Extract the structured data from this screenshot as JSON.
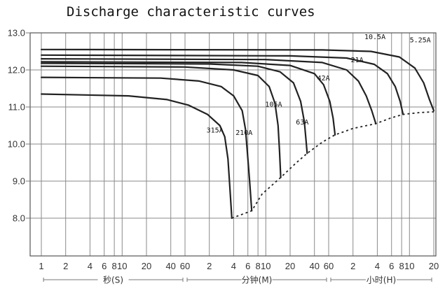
{
  "chart_data": {
    "type": "line",
    "title": "Discharge characteristic curves",
    "xlabel": "",
    "ylabel": "",
    "ylim": [
      7.0,
      13.0
    ],
    "yticks": [
      "13.0",
      "12.0",
      "11.0",
      "10.0",
      "9.0",
      "8.0"
    ],
    "x_tick_labels": [
      "1",
      "2",
      "4",
      "6",
      "8",
      "10",
      "20",
      "40",
      "60",
      "2",
      "4",
      "6",
      "8",
      "10",
      "20",
      "40",
      "60",
      "2",
      "4",
      "6",
      "8",
      "10",
      "20"
    ],
    "x_units": [
      {
        "label": "秒(S)",
        "from_min": 0.0167,
        "to_min": 1
      },
      {
        "label": "分钟(M)",
        "from_min": 1,
        "to_min": 60
      },
      {
        "label": "小时(H)",
        "from_min": 60,
        "to_min": 1200
      }
    ],
    "grid": true,
    "series": [
      {
        "name": "315A",
        "points": [
          [
            0.0167,
            11.35
          ],
          [
            0.2,
            11.3
          ],
          [
            0.6,
            11.2
          ],
          [
            1.1,
            11.05
          ],
          [
            1.9,
            10.8
          ],
          [
            2.7,
            10.5
          ],
          [
            3.1,
            10.2
          ],
          [
            3.4,
            9.6
          ],
          [
            3.6,
            8.8
          ],
          [
            3.8,
            8.0
          ]
        ]
      },
      {
        "name": "210A",
        "points": [
          [
            0.0167,
            11.8
          ],
          [
            0.5,
            11.78
          ],
          [
            1.5,
            11.7
          ],
          [
            2.8,
            11.55
          ],
          [
            4.0,
            11.3
          ],
          [
            5.1,
            10.9
          ],
          [
            5.6,
            10.4
          ],
          [
            5.9,
            9.8
          ],
          [
            6.3,
            9.0
          ],
          [
            6.7,
            8.2
          ]
        ]
      },
      {
        "name": "105A",
        "points": [
          [
            0.0167,
            12.1
          ],
          [
            1.0,
            12.08
          ],
          [
            4.0,
            12.0
          ],
          [
            8.0,
            11.85
          ],
          [
            11.0,
            11.55
          ],
          [
            13.0,
            11.1
          ],
          [
            14.2,
            10.5
          ],
          [
            14.8,
            9.8
          ],
          [
            15.3,
            9.1
          ]
        ]
      },
      {
        "name": "63A",
        "points": [
          [
            0.0167,
            12.18
          ],
          [
            2.0,
            12.16
          ],
          [
            8.0,
            12.1
          ],
          [
            15.0,
            11.95
          ],
          [
            22.0,
            11.65
          ],
          [
            27.0,
            11.15
          ],
          [
            30.0,
            10.6
          ],
          [
            31.5,
            10.1
          ],
          [
            32.5,
            9.75
          ]
        ]
      },
      {
        "name": "42A",
        "points": [
          [
            0.0167,
            12.22
          ],
          [
            5.0,
            12.2
          ],
          [
            20.0,
            12.12
          ],
          [
            40.0,
            11.9
          ],
          [
            52.0,
            11.6
          ],
          [
            62.0,
            11.15
          ],
          [
            68.0,
            10.7
          ],
          [
            72.0,
            10.25
          ]
        ]
      },
      {
        "name": "21A",
        "points": [
          [
            0.0167,
            12.3
          ],
          [
            10.0,
            12.28
          ],
          [
            50.0,
            12.2
          ],
          [
            100.0,
            12.0
          ],
          [
            140.0,
            11.7
          ],
          [
            175.0,
            11.3
          ],
          [
            205.0,
            10.9
          ],
          [
            230.0,
            10.55
          ]
        ]
      },
      {
        "name": "10.5A",
        "points": [
          [
            0.0167,
            12.4
          ],
          [
            20.0,
            12.38
          ],
          [
            100.0,
            12.32
          ],
          [
            220.0,
            12.15
          ],
          [
            320.0,
            11.9
          ],
          [
            400.0,
            11.55
          ],
          [
            460.0,
            11.15
          ],
          [
            500.0,
            10.8
          ]
        ]
      },
      {
        "name": "5.25A",
        "points": [
          [
            0.0167,
            12.55
          ],
          [
            50.0,
            12.54
          ],
          [
            200.0,
            12.5
          ],
          [
            450.0,
            12.35
          ],
          [
            700.0,
            12.05
          ],
          [
            900.0,
            11.65
          ],
          [
            1060.0,
            11.2
          ],
          [
            1200.0,
            10.9
          ]
        ]
      }
    ],
    "cutoff_curve": [
      [
        3.8,
        8.0
      ],
      [
        6.7,
        8.2
      ],
      [
        9.0,
        8.65
      ],
      [
        15.3,
        9.1
      ],
      [
        24.0,
        9.5
      ],
      [
        32.5,
        9.75
      ],
      [
        50.0,
        10.05
      ],
      [
        72.0,
        10.25
      ],
      [
        120.0,
        10.42
      ],
      [
        230.0,
        10.55
      ],
      [
        350.0,
        10.7
      ],
      [
        500.0,
        10.8
      ],
      [
        800.0,
        10.85
      ],
      [
        1200.0,
        10.87
      ]
    ]
  }
}
